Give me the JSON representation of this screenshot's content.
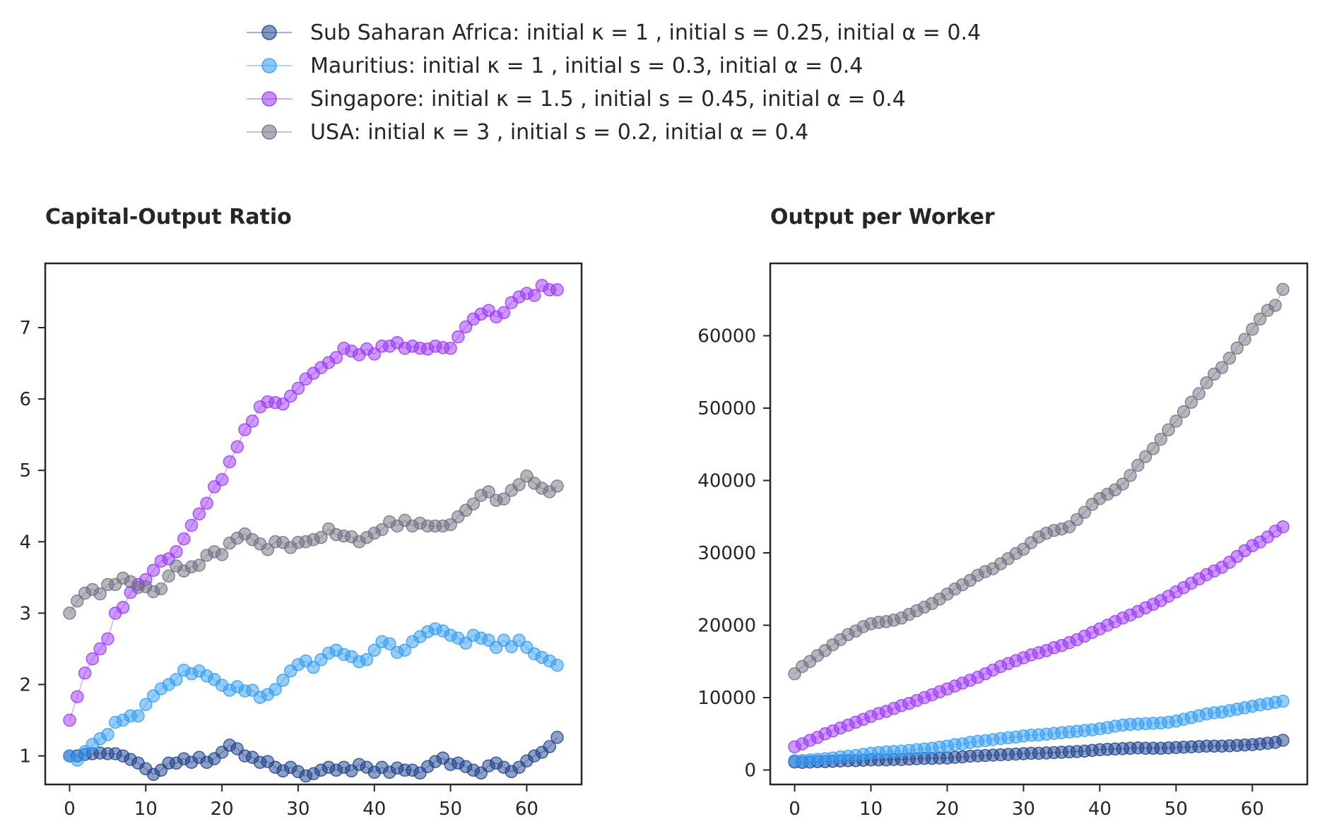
{
  "legend": [
    {
      "label": "Sub Saharan Africa: initial κ = 1 , initial s = 0.25, initial α = 0.4",
      "color": "#1c3f8c"
    },
    {
      "label": "Mauritius: initial κ = 1 , initial s = 0.3, initial α = 0.4",
      "color": "#2f9bf5"
    },
    {
      "label": "Singapore: initial κ = 1.5 , initial s = 0.45, initial α = 0.4",
      "color": "#9933ff"
    },
    {
      "label": "USA: initial κ = 3 , initial s = 0.2, initial α = 0.4",
      "color": "#6e6e80"
    }
  ],
  "chart_data": [
    {
      "type": "line",
      "title": "Capital-Output Ratio",
      "xlabel": "",
      "ylabel": "",
      "xlim": [
        -3.2,
        67.2
      ],
      "ylim": [
        0.6,
        7.9
      ],
      "xticks": [
        0,
        10,
        20,
        30,
        40,
        50,
        60
      ],
      "yticks": [
        1,
        2,
        3,
        4,
        5,
        6,
        7
      ],
      "x": [
        0,
        1,
        2,
        3,
        4,
        5,
        6,
        7,
        8,
        9,
        10,
        11,
        12,
        13,
        14,
        15,
        16,
        17,
        18,
        19,
        20,
        21,
        22,
        23,
        24,
        25,
        26,
        27,
        28,
        29,
        30,
        31,
        32,
        33,
        34,
        35,
        36,
        37,
        38,
        39,
        40,
        41,
        42,
        43,
        44,
        45,
        46,
        47,
        48,
        49,
        50,
        51,
        52,
        53,
        54,
        55,
        56,
        57,
        58,
        59,
        60,
        61,
        62,
        63,
        64
      ],
      "series": [
        {
          "name": "Sub Saharan Africa",
          "values": [
            1.0,
            1.0,
            1.02,
            1.03,
            1.04,
            1.03,
            1.03,
            1.0,
            0.95,
            0.9,
            0.82,
            0.74,
            0.8,
            0.9,
            0.9,
            0.96,
            0.91,
            0.98,
            0.91,
            0.96,
            1.05,
            1.15,
            1.1,
            1.0,
            0.98,
            0.91,
            0.92,
            0.84,
            0.79,
            0.84,
            0.78,
            0.72,
            0.75,
            0.8,
            0.84,
            0.8,
            0.84,
            0.79,
            0.88,
            0.84,
            0.77,
            0.84,
            0.77,
            0.83,
            0.8,
            0.8,
            0.76,
            0.85,
            0.92,
            0.97,
            0.88,
            0.9,
            0.85,
            0.8,
            0.76,
            0.86,
            0.9,
            0.84,
            0.78,
            0.84,
            0.93,
            1.0,
            1.05,
            1.13,
            1.26
          ]
        },
        {
          "name": "Mauritius",
          "values": [
            1.0,
            0.94,
            1.06,
            1.16,
            1.24,
            1.3,
            1.47,
            1.5,
            1.56,
            1.56,
            1.72,
            1.84,
            1.94,
            2.0,
            2.07,
            2.2,
            2.15,
            2.19,
            2.12,
            2.07,
            1.99,
            1.92,
            1.97,
            1.91,
            1.92,
            1.82,
            1.86,
            1.93,
            2.06,
            2.19,
            2.28,
            2.33,
            2.24,
            2.35,
            2.44,
            2.48,
            2.42,
            2.39,
            2.32,
            2.35,
            2.48,
            2.6,
            2.57,
            2.45,
            2.48,
            2.6,
            2.67,
            2.74,
            2.78,
            2.75,
            2.69,
            2.65,
            2.58,
            2.69,
            2.65,
            2.62,
            2.52,
            2.62,
            2.53,
            2.62,
            2.52,
            2.43,
            2.38,
            2.33,
            2.27
          ]
        },
        {
          "name": "Singapore",
          "values": [
            1.5,
            1.83,
            2.16,
            2.36,
            2.5,
            2.64,
            3.0,
            3.08,
            3.29,
            3.4,
            3.47,
            3.6,
            3.73,
            3.76,
            3.86,
            4.04,
            4.23,
            4.39,
            4.54,
            4.77,
            4.87,
            5.12,
            5.33,
            5.57,
            5.69,
            5.89,
            5.96,
            5.95,
            5.93,
            6.04,
            6.15,
            6.28,
            6.36,
            6.44,
            6.51,
            6.58,
            6.71,
            6.67,
            6.62,
            6.7,
            6.63,
            6.74,
            6.74,
            6.79,
            6.71,
            6.74,
            6.71,
            6.7,
            6.74,
            6.72,
            6.71,
            6.87,
            7.01,
            7.12,
            7.19,
            7.24,
            7.15,
            7.21,
            7.35,
            7.43,
            7.48,
            7.45,
            7.59,
            7.53,
            7.53
          ]
        },
        {
          "name": "USA",
          "values": [
            3.0,
            3.17,
            3.28,
            3.33,
            3.27,
            3.4,
            3.4,
            3.49,
            3.44,
            3.36,
            3.37,
            3.3,
            3.34,
            3.52,
            3.66,
            3.59,
            3.65,
            3.67,
            3.81,
            3.86,
            3.82,
            3.98,
            4.05,
            4.11,
            4.03,
            3.97,
            3.89,
            4.0,
            3.99,
            3.92,
            3.99,
            4.0,
            4.03,
            4.06,
            4.18,
            4.1,
            4.08,
            4.07,
            4.0,
            4.06,
            4.12,
            4.17,
            4.28,
            4.22,
            4.3,
            4.22,
            4.26,
            4.22,
            4.22,
            4.22,
            4.24,
            4.35,
            4.44,
            4.53,
            4.65,
            4.7,
            4.58,
            4.6,
            4.72,
            4.8,
            4.92,
            4.82,
            4.75,
            4.7,
            4.78
          ]
        }
      ]
    },
    {
      "type": "line",
      "title": "Output per Worker",
      "xlabel": "",
      "ylabel": "",
      "xlim": [
        -3.2,
        67.2
      ],
      "ylim": [
        -2000,
        70000
      ],
      "xticks": [
        0,
        10,
        20,
        30,
        40,
        50,
        60
      ],
      "yticks": [
        0,
        10000,
        20000,
        30000,
        40000,
        50000,
        60000
      ],
      "x": [
        0,
        1,
        2,
        3,
        4,
        5,
        6,
        7,
        8,
        9,
        10,
        11,
        12,
        13,
        14,
        15,
        16,
        17,
        18,
        19,
        20,
        21,
        22,
        23,
        24,
        25,
        26,
        27,
        28,
        29,
        30,
        31,
        32,
        33,
        34,
        35,
        36,
        37,
        38,
        39,
        40,
        41,
        42,
        43,
        44,
        45,
        46,
        47,
        48,
        49,
        50,
        51,
        52,
        53,
        54,
        55,
        56,
        57,
        58,
        59,
        60,
        61,
        62,
        63,
        64
      ],
      "series": [
        {
          "name": "Sub Saharan Africa",
          "values": [
            1100,
            1050,
            1100,
            1150,
            1150,
            1200,
            1250,
            1300,
            1300,
            1350,
            1400,
            1400,
            1400,
            1450,
            1450,
            1500,
            1550,
            1600,
            1600,
            1650,
            1650,
            1750,
            1800,
            1900,
            1950,
            2000,
            2050,
            2100,
            2150,
            2200,
            2250,
            2300,
            2300,
            2350,
            2400,
            2450,
            2500,
            2550,
            2600,
            2700,
            2800,
            2850,
            2900,
            2950,
            3000,
            3050,
            3000,
            3000,
            3000,
            3050,
            3100,
            3150,
            3200,
            3250,
            3300,
            3300,
            3300,
            3350,
            3400,
            3450,
            3500,
            3600,
            3700,
            3800,
            4100
          ]
        },
        {
          "name": "Mauritius",
          "values": [
            1300,
            1300,
            1400,
            1450,
            1550,
            1650,
            1800,
            1900,
            2000,
            2150,
            2300,
            2400,
            2500,
            2550,
            2600,
            2700,
            2800,
            2900,
            3000,
            3150,
            3300,
            3500,
            3600,
            3800,
            3950,
            4050,
            4200,
            4350,
            4450,
            4550,
            4700,
            4800,
            4850,
            4950,
            5050,
            5150,
            5250,
            5350,
            5450,
            5550,
            5700,
            5850,
            6050,
            6200,
            6300,
            6350,
            6400,
            6450,
            6500,
            6600,
            6750,
            7000,
            7250,
            7500,
            7750,
            7900,
            8000,
            8200,
            8400,
            8600,
            8800,
            9000,
            9150,
            9350,
            9500
          ]
        },
        {
          "name": "Singapore",
          "values": [
            3200,
            3600,
            4100,
            4500,
            5000,
            5400,
            5800,
            6200,
            6600,
            7000,
            7400,
            7800,
            8100,
            8500,
            8900,
            9200,
            9600,
            10000,
            10400,
            10800,
            11200,
            11600,
            12000,
            12400,
            12800,
            13300,
            13800,
            14300,
            14700,
            15100,
            15500,
            15900,
            16200,
            16500,
            16900,
            17200,
            17600,
            18000,
            18500,
            19000,
            19500,
            20000,
            20500,
            21000,
            21400,
            21900,
            22400,
            22900,
            23400,
            24000,
            24600,
            25200,
            25800,
            26400,
            27000,
            27500,
            28000,
            28700,
            29500,
            30300,
            31000,
            31500,
            32200,
            33000,
            33600
          ]
        },
        {
          "name": "USA",
          "values": [
            13300,
            14300,
            15000,
            15800,
            16500,
            17300,
            18000,
            18700,
            19200,
            19800,
            20200,
            20400,
            20500,
            20700,
            21000,
            21500,
            22000,
            22500,
            23000,
            23600,
            24300,
            25000,
            25600,
            26200,
            26900,
            27400,
            27800,
            28500,
            29200,
            29900,
            30500,
            31400,
            32200,
            32700,
            33100,
            33300,
            33600,
            34600,
            35600,
            36700,
            37500,
            38100,
            38700,
            39500,
            40700,
            42100,
            43300,
            44400,
            45700,
            47000,
            48200,
            49500,
            50800,
            52000,
            53500,
            54700,
            55600,
            56900,
            58300,
            59500,
            60900,
            62300,
            63500,
            64200,
            66400
          ]
        }
      ]
    }
  ]
}
